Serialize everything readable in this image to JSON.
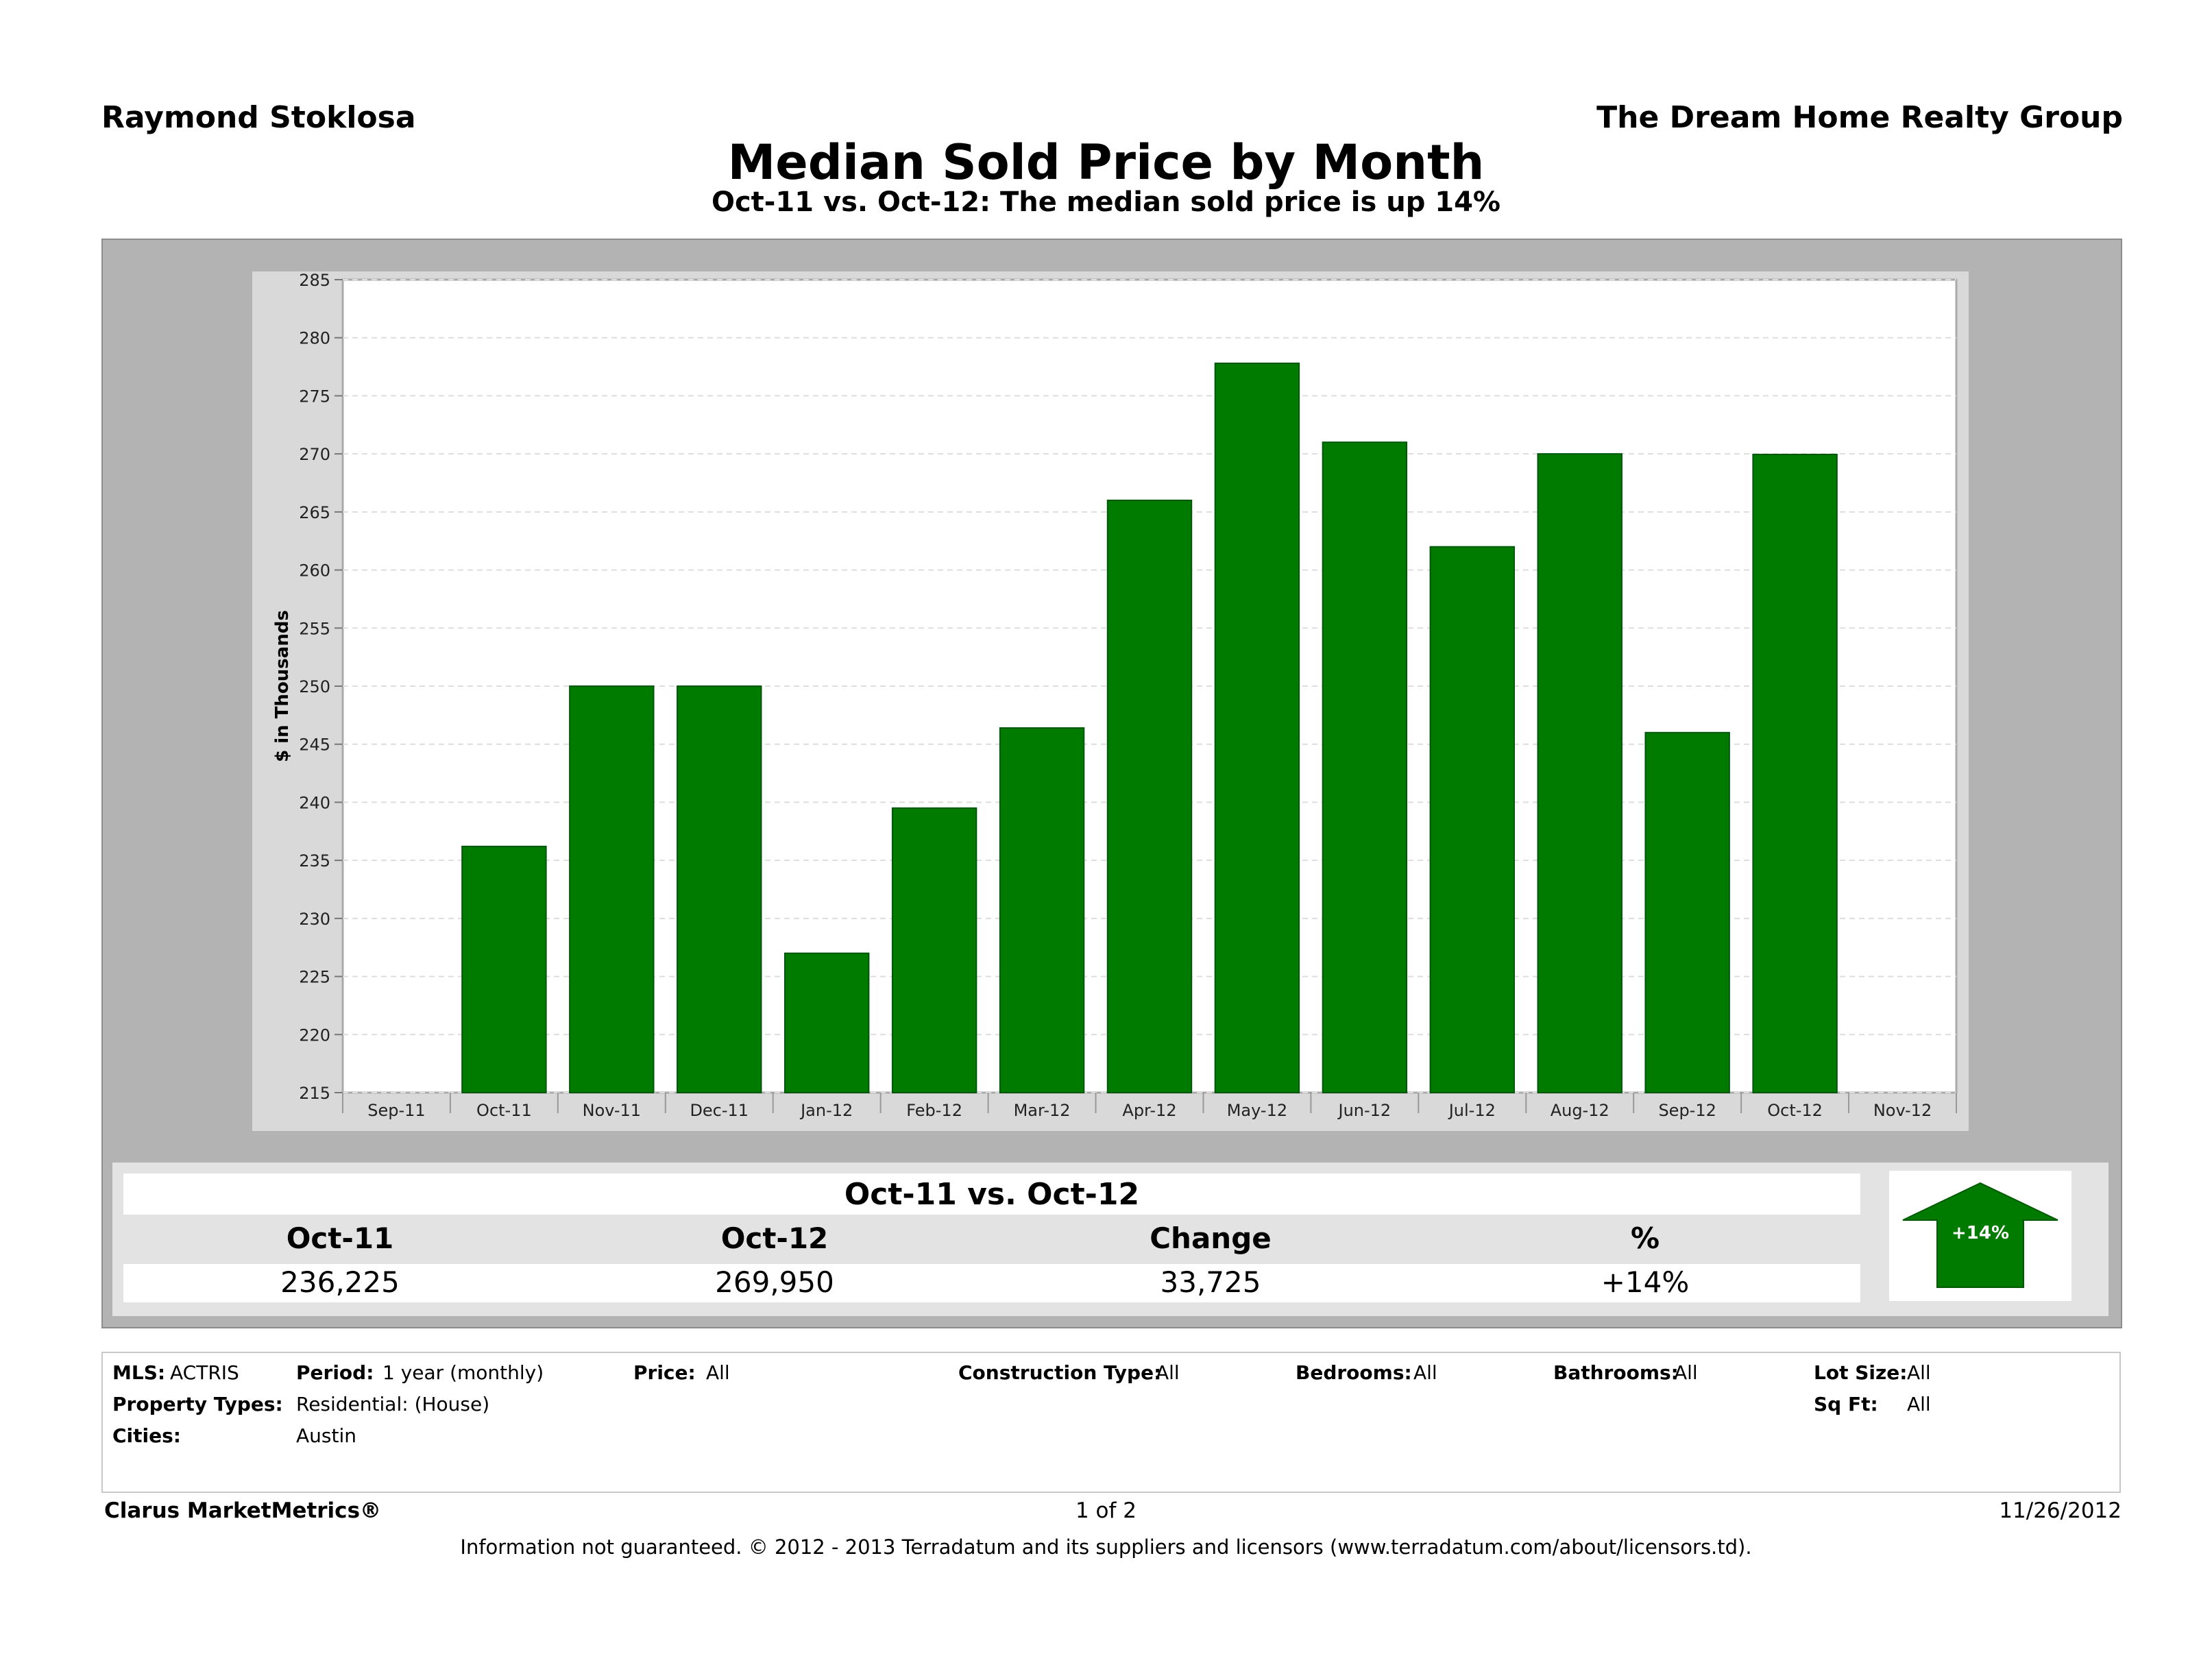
{
  "header": {
    "agent": "Raymond Stoklosa",
    "company": "The Dream Home Realty Group"
  },
  "chart_data": {
    "type": "bar",
    "title": "Median Sold Price by Month",
    "subtitle": "Oct-11 vs. Oct-12:  The median sold price is up 14%",
    "ylabel": "$ in Thousands",
    "xlabel": "",
    "ylim": [
      215,
      285
    ],
    "ytick_step": 5,
    "grid": true,
    "bar_color": "#007b00",
    "x_axis_labels": [
      "Sep-11",
      "Oct-11",
      "Nov-11",
      "Dec-11",
      "Jan-12",
      "Feb-12",
      "Mar-12",
      "Apr-12",
      "May-12",
      "Jun-12",
      "Jul-12",
      "Aug-12",
      "Sep-12",
      "Oct-12",
      "Nov-12"
    ],
    "categories": [
      "Oct-11",
      "Nov-11",
      "Dec-11",
      "Jan-12",
      "Feb-12",
      "Mar-12",
      "Apr-12",
      "May-12",
      "Jun-12",
      "Jul-12",
      "Aug-12",
      "Sep-12",
      "Oct-12"
    ],
    "values": [
      236.2,
      250.0,
      250.0,
      227.0,
      239.5,
      246.4,
      266.0,
      277.8,
      271.0,
      262.0,
      270.0,
      246.0,
      269.95
    ]
  },
  "comparison": {
    "title": "Oct-11 vs. Oct-12",
    "headers": [
      "Oct-11",
      "Oct-12",
      "Change",
      "%"
    ],
    "values": [
      "236,225",
      "269,950",
      "33,725",
      "+14%"
    ],
    "badge": "+14%",
    "arrow_color": "#007b00"
  },
  "criteria": {
    "mls_label": "MLS:",
    "mls_value": "ACTRIS",
    "period_label": "Period:",
    "period_value": "1 year (monthly)",
    "price_label": "Price:",
    "price_value": "All",
    "construction_label": "Construction Type:",
    "construction_value": "All",
    "bedrooms_label": "Bedrooms:",
    "bedrooms_value": "All",
    "bathrooms_label": "Bathrooms:",
    "bathrooms_value": "All",
    "lotsize_label": "Lot Size:",
    "lotsize_value": "All",
    "ptype_label": "Property Types:",
    "ptype_value": "Residential: (House)",
    "sqft_label": "Sq Ft:",
    "sqft_value": "All",
    "cities_label": "Cities:",
    "cities_value": "Austin"
  },
  "footer": {
    "brand": "Clarus MarketMetrics®",
    "page": "1 of 2",
    "date": "11/26/2012",
    "disclaimer": "Information not guaranteed.  © 2012 - 2013 Terradatum and its suppliers and licensors (www.terradatum.com/about/licensors.td)."
  }
}
